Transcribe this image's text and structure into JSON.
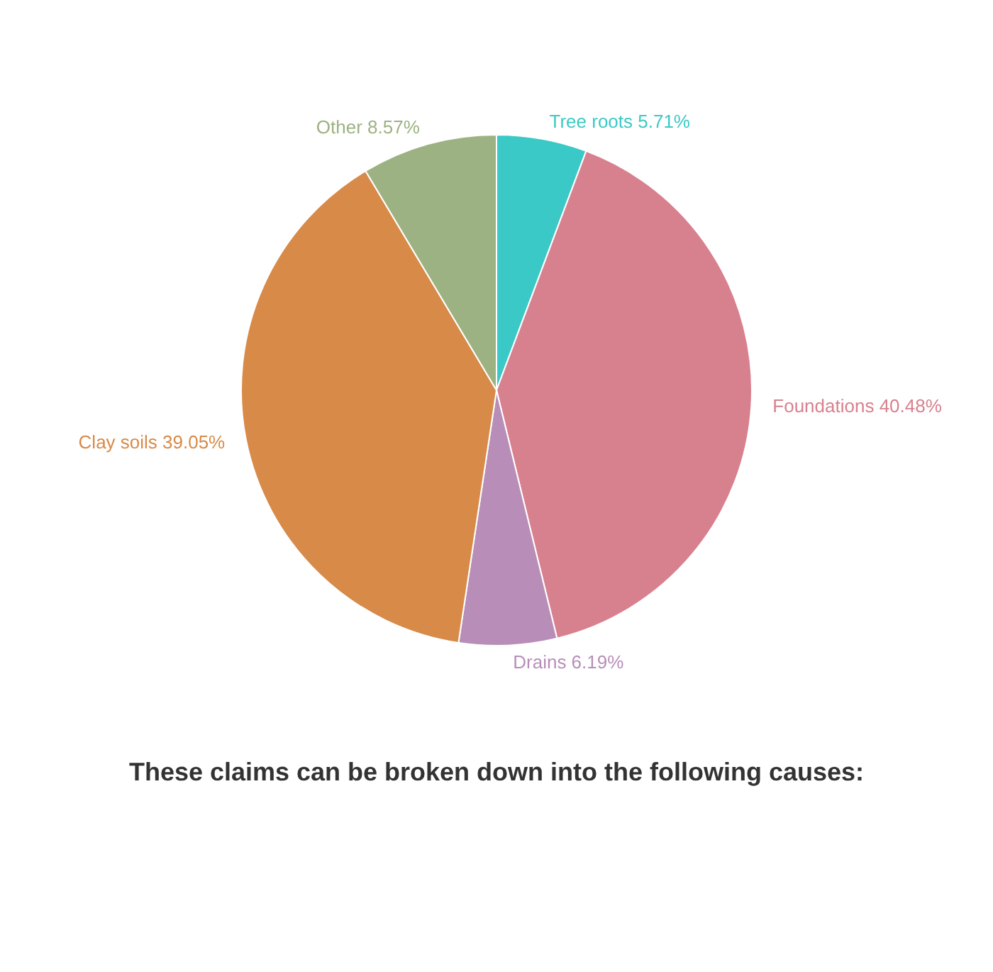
{
  "chart_data": {
    "type": "pie",
    "title": "These claims can be broken down into the following causes:",
    "categories": [
      "Tree roots",
      "Foundations",
      "Drains",
      "Clay soils",
      "Other"
    ],
    "values": [
      5.71,
      40.48,
      6.19,
      39.05,
      8.57
    ],
    "value_labels": [
      "5.71%",
      "40.48%",
      "6.19%",
      "39.05%",
      "8.57%"
    ],
    "colors": [
      "#3ac9c6",
      "#d8818e",
      "#b88eb8",
      "#d88a48",
      "#9db282"
    ]
  }
}
